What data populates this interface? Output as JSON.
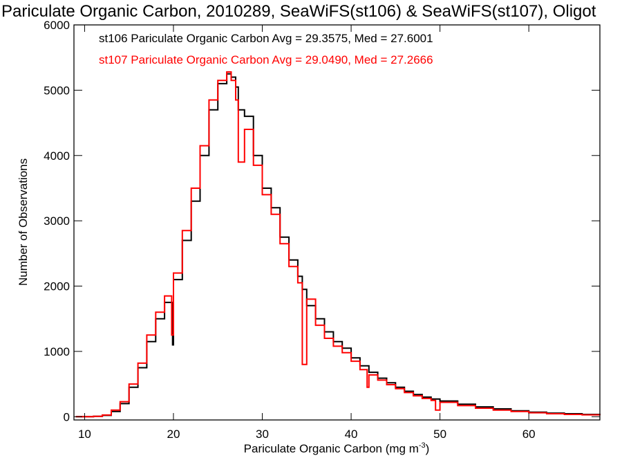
{
  "chart_data": {
    "type": "line",
    "title": "Pariculate Organic Carbon, 2010289, SeaWiFS(st106) & SeaWiFS(st107), Oligot",
    "xlabel": "Pariculate Organic Carbon (mg m",
    "xlabel_sup": "-3",
    "xlabel_end": ")",
    "ylabel": "Number of Observations",
    "xlim": [
      8.8,
      68
    ],
    "ylim": [
      -50,
      6000
    ],
    "x_ticks": [
      10,
      20,
      30,
      40,
      50,
      60
    ],
    "y_ticks": [
      0,
      1000,
      2000,
      3000,
      4000,
      5000,
      6000
    ],
    "grid": false,
    "legend_position": "top-left",
    "series": [
      {
        "name": "st106",
        "legend": "st106 Pariculate Organic Carbon Avg = 29.3575, Med = 27.6001",
        "color": "#000000",
        "x": [
          9,
          10,
          11,
          12,
          13,
          14,
          15,
          16,
          17,
          18,
          19,
          19.9,
          20,
          21,
          22,
          23,
          24,
          25,
          26,
          26.5,
          27,
          27.3,
          28,
          29,
          30,
          31,
          32,
          33,
          34,
          34.5,
          35,
          36,
          37,
          38,
          39,
          40,
          41,
          42,
          43,
          44,
          45,
          46,
          47,
          48,
          49,
          50,
          52,
          54,
          56,
          58,
          60,
          62,
          64,
          66,
          68
        ],
        "y": [
          0,
          0,
          5,
          20,
          80,
          200,
          450,
          750,
          1150,
          1500,
          1750,
          1100,
          2100,
          2700,
          3300,
          4000,
          4700,
          5100,
          5250,
          5200,
          5050,
          4700,
          4600,
          4000,
          3500,
          3200,
          2750,
          2400,
          2150,
          1950,
          1700,
          1500,
          1300,
          1150,
          1050,
          900,
          780,
          680,
          590,
          520,
          450,
          390,
          340,
          300,
          270,
          240,
          190,
          150,
          120,
          90,
          70,
          55,
          45,
          35,
          30
        ]
      },
      {
        "name": "st107",
        "legend": "st107 Pariculate Organic Carbon Avg = 29.0490, Med = 27.2666",
        "color": "#ff0000",
        "x": [
          9,
          10,
          11,
          12,
          13,
          14,
          15,
          16,
          17,
          18,
          19,
          19.8,
          20,
          21,
          22,
          23,
          24,
          25,
          26,
          26.5,
          27,
          27.3,
          28,
          29,
          30,
          31,
          32,
          33,
          34,
          34.5,
          35,
          36,
          37,
          38,
          39,
          40,
          41,
          41.8,
          42,
          43,
          44,
          45,
          46,
          47,
          48,
          49,
          49.5,
          50,
          52,
          54,
          56,
          58,
          60,
          62,
          64,
          66,
          68
        ],
        "y": [
          0,
          0,
          5,
          25,
          100,
          230,
          500,
          820,
          1250,
          1600,
          1850,
          1250,
          2200,
          2850,
          3500,
          4150,
          4850,
          5150,
          5280,
          5150,
          4850,
          3900,
          4400,
          3850,
          3400,
          3100,
          2650,
          2300,
          2050,
          800,
          1800,
          1400,
          1200,
          1080,
          980,
          850,
          720,
          450,
          640,
          560,
          490,
          430,
          370,
          320,
          280,
          250,
          100,
          220,
          170,
          130,
          100,
          80,
          60,
          45,
          35,
          28,
          22
        ]
      }
    ]
  }
}
